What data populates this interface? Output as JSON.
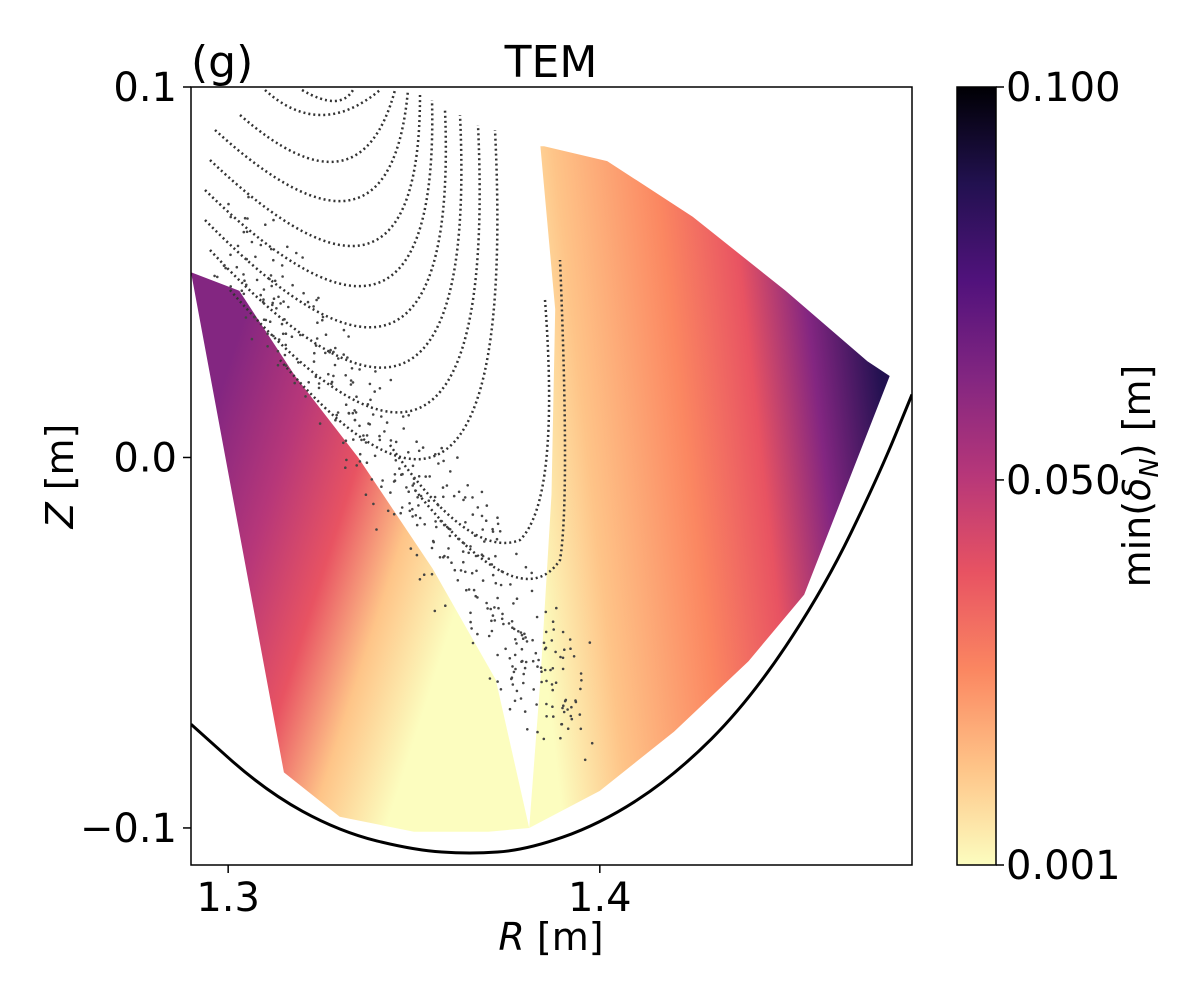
{
  "chart_data": {
    "type": "heatmap",
    "panel_label": "(g)",
    "title": "TEM",
    "xlabel_var": "R",
    "xlabel_unit": " [m]",
    "ylabel_var": "Z",
    "ylabel_unit": " [m]",
    "xlim": [
      1.29,
      1.484
    ],
    "ylim": [
      -0.11,
      0.1
    ],
    "xticks": [
      1.3,
      1.4
    ],
    "xtick_labels": [
      "1.3",
      "1.4"
    ],
    "yticks": [
      0.1,
      0.0,
      -0.1
    ],
    "ytick_labels": [
      "0.1",
      "0.0",
      "−0.1"
    ],
    "grid": false,
    "colorbar": {
      "label_prefix": "min(",
      "label_symbol": "δ",
      "label_sub": "N",
      "label_suffix": ") [m]",
      "range": [
        0.001,
        0.1
      ],
      "ticks": [
        0.001,
        0.05,
        0.1
      ],
      "tick_labels": [
        "0.001",
        "0.050",
        "0.100"
      ],
      "colormap": "magma_r",
      "colors": [
        "#fcfdbf",
        "#fec488",
        "#fb8761",
        "#e85362",
        "#b73779",
        "#832681",
        "#51127c",
        "#221150",
        "#000004"
      ]
    },
    "wall_boundary": {
      "R": [
        1.29,
        1.31,
        1.33,
        1.35,
        1.365,
        1.38,
        1.4,
        1.42,
        1.44,
        1.46,
        1.475,
        1.484
      ],
      "Z": [
        -0.072,
        -0.09,
        -0.101,
        -0.106,
        -0.107,
        -0.106,
        -0.099,
        -0.086,
        -0.066,
        -0.036,
        -0.005,
        0.017
      ]
    },
    "colored_regions": [
      {
        "name": "left-lobe",
        "R": [
          1.29,
          1.303,
          1.318,
          1.335,
          1.355,
          1.372,
          1.381,
          1.37,
          1.35,
          1.33,
          1.315,
          1.29
        ],
        "Z": [
          0.05,
          0.045,
          0.022,
          0.0,
          -0.03,
          -0.06,
          -0.1,
          -0.101,
          -0.101,
          -0.097,
          -0.085,
          0.05
        ]
      },
      {
        "name": "right-lobe",
        "R": [
          1.385,
          1.402,
          1.425,
          1.45,
          1.472,
          1.478,
          1.455,
          1.44,
          1.42,
          1.4,
          1.381,
          1.384,
          1.387,
          1.388,
          1.384
        ],
        "Z": [
          0.084,
          0.08,
          0.065,
          0.045,
          0.026,
          0.022,
          -0.037,
          -0.055,
          -0.074,
          -0.09,
          -0.1,
          -0.06,
          -0.01,
          0.04,
          0.084
        ]
      }
    ]
  }
}
